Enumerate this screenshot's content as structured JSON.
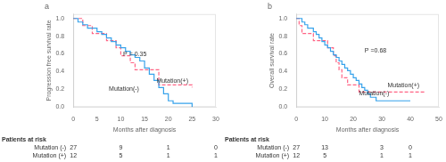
{
  "chart_data": [
    {
      "type": "step",
      "title": "a",
      "x_label": "Months after diagnosis",
      "y_label": "Progression free survival rate",
      "xlim": [
        0,
        30
      ],
      "ylim": [
        0,
        1.05
      ],
      "xticks": [
        0,
        5,
        10,
        15,
        20,
        25,
        30
      ],
      "yticks": [
        {
          "value": 0.0,
          "label": "0.0"
        },
        0.2,
        0.4,
        0.6,
        0.8,
        {
          "value": 1.0,
          "label": "1.0"
        }
      ],
      "grid": false,
      "series": [
        {
          "line_style": "solid",
          "x": [
            0,
            1,
            2,
            3,
            4,
            5,
            6,
            7,
            8,
            9,
            10,
            11,
            12,
            13,
            14,
            15,
            16,
            17,
            18,
            19,
            20,
            21,
            22,
            23,
            24,
            25
          ],
          "values": [
            1.0,
            0.96,
            0.93,
            0.89,
            0.89,
            0.85,
            0.82,
            0.78,
            0.74,
            0.7,
            0.67,
            0.63,
            0.59,
            0.56,
            0.52,
            0.44,
            0.37,
            0.3,
            0.22,
            0.15,
            0.07,
            0.04,
            0.04,
            0.04,
            0.04,
            0.0
          ]
        },
        {
          "line_style": "dashed",
          "x": [
            0,
            1,
            2,
            3,
            4,
            5,
            6,
            7,
            8,
            9,
            10,
            11,
            12,
            13,
            14,
            15,
            16,
            17,
            18,
            19,
            20,
            21,
            22,
            23,
            24,
            25
          ],
          "values": [
            1.0,
            1.0,
            0.92,
            0.92,
            0.83,
            0.83,
            0.83,
            0.75,
            0.75,
            0.67,
            0.58,
            0.58,
            0.5,
            0.42,
            0.42,
            0.42,
            0.42,
            0.42,
            0.25,
            0.25,
            0.25,
            0.25,
            0.25,
            0.25,
            0.25,
            0.22
          ]
        }
      ],
      "annotations": [
        {
          "text": "P = 0.35",
          "x": 10.5,
          "y": 0.58
        },
        {
          "text": "Mutation(-)",
          "x": 7.5,
          "y": 0.18
        },
        {
          "text": "Mutation(+)",
          "x": 17.5,
          "y": 0.27
        }
      ],
      "at_risk": {
        "title": "Patients at risk",
        "times": [
          0,
          10,
          20,
          30
        ],
        "rows": [
          {
            "name": "Mutation (-)",
            "values": [
              27,
              9,
              1,
              0
            ]
          },
          {
            "name": "Mutation (+)",
            "values": [
              12,
              5,
              1,
              1
            ]
          }
        ]
      }
    },
    {
      "type": "step",
      "title": "b",
      "x_label": "Months after diagnosis",
      "y_label": "Overall survival rate",
      "xlim": [
        0,
        50
      ],
      "ylim": [
        0,
        1.05
      ],
      "xticks": [
        0,
        10,
        20,
        30,
        40,
        50
      ],
      "yticks": [
        {
          "value": 0.0,
          "label": "0.0"
        },
        0.2,
        0.4,
        0.6,
        0.8,
        {
          "value": 1.0,
          "label": "1.0"
        }
      ],
      "grid": false,
      "series": [
        {
          "line_style": "solid",
          "x": [
            0,
            1,
            2,
            3,
            4,
            5,
            6,
            7,
            8,
            9,
            10,
            11,
            12,
            13,
            14,
            15,
            16,
            17,
            18,
            19,
            20,
            21,
            22,
            23,
            24,
            25,
            26,
            27,
            28,
            29,
            30,
            32,
            35,
            38,
            40
          ],
          "values": [
            1.0,
            1.0,
            0.96,
            0.93,
            0.89,
            0.89,
            0.85,
            0.82,
            0.78,
            0.74,
            0.7,
            0.67,
            0.63,
            0.59,
            0.56,
            0.52,
            0.48,
            0.44,
            0.41,
            0.37,
            0.33,
            0.3,
            0.26,
            0.22,
            0.19,
            0.15,
            0.11,
            0.11,
            0.07,
            0.07,
            0.07,
            0.07,
            0.07,
            0.07,
            0.07
          ]
        },
        {
          "line_style": "dashed",
          "x": [
            0,
            1,
            2,
            3,
            5,
            6,
            8,
            10,
            11,
            13,
            14,
            15,
            16,
            18,
            22,
            27,
            30,
            35,
            40,
            45
          ],
          "values": [
            1.0,
            0.92,
            0.83,
            0.83,
            0.83,
            0.75,
            0.75,
            0.75,
            0.67,
            0.58,
            0.5,
            0.42,
            0.33,
            0.25,
            0.17,
            0.17,
            0.17,
            0.17,
            0.17,
            0.17
          ]
        }
      ],
      "annotations": [
        {
          "text": "P =0.68",
          "x": 24,
          "y": 0.62
        },
        {
          "text": "Mutation(-)",
          "x": 22,
          "y": 0.13
        },
        {
          "text": "Mutation(+)",
          "x": 32,
          "y": 0.22
        }
      ],
      "at_risk": {
        "title": "Patients at risk",
        "times": [
          0,
          10,
          30,
          40
        ],
        "rows": [
          {
            "name": "Mutation (-)",
            "values": [
              27,
              13,
              3,
              0
            ]
          },
          {
            "name": "Mutation (+)",
            "values": [
              12,
              5,
              1,
              1
            ]
          }
        ]
      }
    }
  ]
}
